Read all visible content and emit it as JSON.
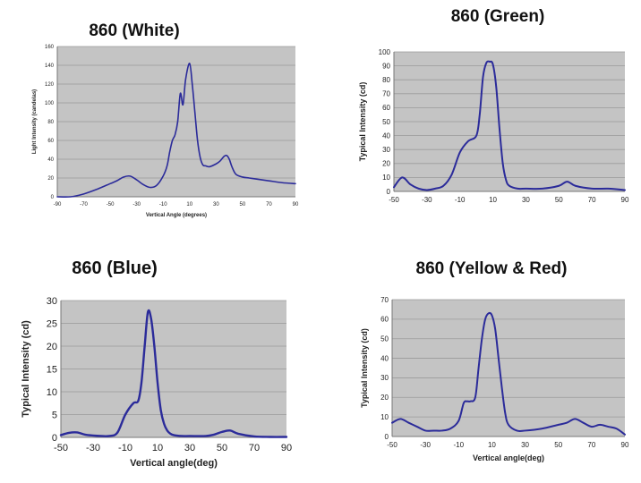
{
  "colors": {
    "series": "#2b2b9a",
    "plot_bg": "#c4c4c4"
  },
  "chart_data": [
    {
      "type": "line",
      "title": "860 (White)",
      "xlabel": "Vertical Angle (degrees)",
      "ylabel": "Light Intensity (candelas)",
      "xlim": [
        -90,
        90
      ],
      "ylim": [
        0,
        160
      ],
      "xticks": [
        -90,
        -70,
        -50,
        -30,
        -10,
        10,
        30,
        50,
        70,
        90
      ],
      "yticks": [
        0,
        20,
        40,
        60,
        80,
        100,
        120,
        140,
        160
      ],
      "grid": true,
      "series": [
        {
          "x": [
            -90,
            -80,
            -70,
            -60,
            -50,
            -45,
            -40,
            -35,
            -30,
            -25,
            -20,
            -15,
            -10,
            -7,
            -5,
            -3,
            -1,
            1,
            3,
            5,
            7,
            10,
            12,
            14,
            16,
            18,
            20,
            22,
            25,
            30,
            33,
            36,
            38,
            40,
            42,
            45,
            50,
            55,
            60,
            70,
            80,
            90
          ],
          "y": [
            0,
            0,
            3,
            8,
            14,
            17,
            21,
            22,
            18,
            13,
            10,
            12,
            22,
            33,
            48,
            60,
            66,
            80,
            110,
            98,
            125,
            142,
            120,
            90,
            60,
            42,
            34,
            33,
            32,
            35,
            38,
            43,
            44,
            40,
            32,
            24,
            21,
            20,
            19,
            17,
            15,
            14
          ]
        }
      ]
    },
    {
      "type": "line",
      "title": "860 (Green)",
      "xlabel": "",
      "ylabel": "Typical Intensity (cd)",
      "xlim": [
        -50,
        90
      ],
      "ylim": [
        0,
        100
      ],
      "xticks": [
        -50,
        -30,
        -10,
        10,
        30,
        50,
        70,
        90
      ],
      "yticks": [
        0,
        10,
        20,
        30,
        40,
        50,
        60,
        70,
        80,
        90,
        100
      ],
      "grid": true,
      "series": [
        {
          "x": [
            -50,
            -45,
            -40,
            -35,
            -30,
            -25,
            -20,
            -15,
            -10,
            -5,
            0,
            2,
            4,
            6,
            8,
            10,
            12,
            14,
            16,
            18,
            20,
            25,
            30,
            40,
            50,
            55,
            60,
            70,
            80,
            90
          ],
          "y": [
            3,
            10,
            5,
            2,
            1,
            2,
            4,
            12,
            28,
            36,
            40,
            55,
            82,
            92,
            93,
            91,
            75,
            45,
            20,
            8,
            4,
            2,
            2,
            2,
            4,
            7,
            4,
            2,
            2,
            1
          ]
        }
      ]
    },
    {
      "type": "line",
      "title": "860 (Blue)",
      "xlabel": "Vertical angle(deg)",
      "ylabel": "Typical Intensity (cd)",
      "xlim": [
        -50,
        90
      ],
      "ylim": [
        0,
        30
      ],
      "xticks": [
        -50,
        -30,
        -10,
        10,
        30,
        50,
        70,
        90
      ],
      "yticks": [
        0,
        5,
        10,
        15,
        20,
        25,
        30
      ],
      "grid": true,
      "series": [
        {
          "x": [
            -50,
            -45,
            -40,
            -35,
            -30,
            -25,
            -20,
            -15,
            -10,
            -5,
            -2,
            0,
            2,
            4,
            6,
            8,
            10,
            12,
            14,
            16,
            18,
            20,
            25,
            30,
            40,
            45,
            50,
            55,
            60,
            70,
            80,
            90
          ],
          "y": [
            0.5,
            1,
            1.1,
            0.6,
            0.4,
            0.3,
            0.3,
            1,
            5,
            7.5,
            8,
            12,
            20,
            27.5,
            26,
            20,
            12,
            6,
            3,
            1.5,
            0.8,
            0.5,
            0.3,
            0.3,
            0.3,
            0.6,
            1.2,
            1.5,
            0.8,
            0.2,
            0.1,
            0.1
          ]
        }
      ]
    },
    {
      "type": "line",
      "title": "860 (Yellow & Red)",
      "xlabel": "Vertical angle(deg)",
      "ylabel": "Typical Intensity (cd)",
      "xlim": [
        -50,
        90
      ],
      "ylim": [
        0,
        70
      ],
      "xticks": [
        -50,
        -30,
        -10,
        10,
        30,
        50,
        70,
        90
      ],
      "yticks": [
        0,
        10,
        20,
        30,
        40,
        50,
        60,
        70
      ],
      "grid": true,
      "series": [
        {
          "x": [
            -50,
            -45,
            -40,
            -35,
            -30,
            -25,
            -20,
            -15,
            -10,
            -7,
            -5,
            -3,
            0,
            2,
            4,
            6,
            8,
            10,
            12,
            14,
            16,
            18,
            20,
            25,
            30,
            40,
            50,
            55,
            60,
            65,
            70,
            75,
            80,
            85,
            90
          ],
          "y": [
            7,
            9,
            7,
            5,
            3,
            3,
            3,
            4,
            8,
            17,
            18,
            18,
            20,
            35,
            50,
            60,
            63,
            62,
            55,
            40,
            25,
            12,
            6,
            3,
            3,
            4,
            6,
            7,
            9,
            7,
            5,
            6,
            5,
            4,
            1
          ]
        }
      ]
    }
  ]
}
